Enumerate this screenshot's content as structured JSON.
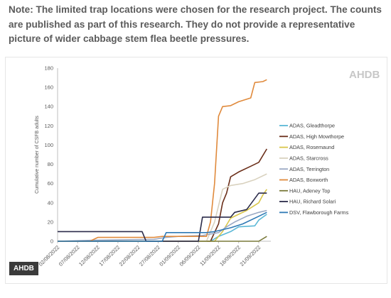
{
  "note": "Note: The limited trap locations were chosen for the research project. The counts are published as part of this research. They do not provide a representative picture of wider cabbage stem flea beetle pressures.",
  "brand_logo": "AHDB",
  "source_badge": "AHDB",
  "chart_data": {
    "type": "line",
    "ylabel": "Cumulative number of CSFB adults",
    "xlabel": "",
    "ylim": [
      0,
      180
    ],
    "yticks": [
      0,
      20,
      40,
      60,
      80,
      100,
      120,
      140,
      160,
      180
    ],
    "x_start": "02/08/2022",
    "x_end": "24/09/2022",
    "xticks": [
      "02/08/2022",
      "07/08/2022",
      "12/08/2022",
      "17/08/2022",
      "22/08/2022",
      "27/08/2022",
      "01/09/2022",
      "06/09/2022",
      "11/09/2022",
      "16/09/2022",
      "21/09/2022"
    ],
    "grid": false,
    "legend_position": "right",
    "series": [
      {
        "name": "ADAS, Gleadthorpe",
        "color": "#5bb8d6",
        "points": [
          [
            "02/08/2022",
            0
          ],
          [
            "09/09/2022",
            0
          ],
          [
            "11/09/2022",
            5
          ],
          [
            "14/09/2022",
            10
          ],
          [
            "16/09/2022",
            15
          ],
          [
            "20/09/2022",
            16
          ],
          [
            "21/09/2022",
            22
          ],
          [
            "23/09/2022",
            28
          ]
        ]
      },
      {
        "name": "ADAS, High Mowthorpe",
        "color": "#6b2f1a",
        "points": [
          [
            "02/08/2022",
            0
          ],
          [
            "09/09/2022",
            0
          ],
          [
            "11/09/2022",
            18
          ],
          [
            "12/09/2022",
            40
          ],
          [
            "13/09/2022",
            50
          ],
          [
            "14/09/2022",
            67
          ],
          [
            "16/09/2022",
            72
          ],
          [
            "19/09/2022",
            78
          ],
          [
            "21/09/2022",
            82
          ],
          [
            "23/09/2022",
            96
          ]
        ]
      },
      {
        "name": "ADAS, Rosemaund",
        "color": "#d9c64a",
        "points": [
          [
            "02/08/2022",
            0
          ],
          [
            "10/09/2022",
            0
          ],
          [
            "12/09/2022",
            10
          ],
          [
            "14/09/2022",
            24
          ],
          [
            "16/09/2022",
            28
          ],
          [
            "18/09/2022",
            32
          ],
          [
            "21/09/2022",
            40
          ],
          [
            "22/09/2022",
            48
          ],
          [
            "23/09/2022",
            54
          ]
        ]
      },
      {
        "name": "ADAS, Starcross",
        "color": "#d9d2bf",
        "points": [
          [
            "02/08/2022",
            0
          ],
          [
            "08/09/2022",
            0
          ],
          [
            "10/09/2022",
            20
          ],
          [
            "12/09/2022",
            54
          ],
          [
            "14/09/2022",
            58
          ],
          [
            "17/09/2022",
            60
          ],
          [
            "20/09/2022",
            64
          ],
          [
            "23/09/2022",
            70
          ]
        ]
      },
      {
        "name": "ADAS, Terrington",
        "color": "#9aa9c4",
        "points": [
          [
            "02/08/2022",
            0
          ],
          [
            "11/08/2022",
            1
          ],
          [
            "26/08/2022",
            2
          ],
          [
            "29/08/2022",
            4
          ],
          [
            "01/09/2022",
            5
          ],
          [
            "07/09/2022",
            6
          ],
          [
            "11/09/2022",
            9
          ],
          [
            "13/09/2022",
            15
          ],
          [
            "15/09/2022",
            20
          ],
          [
            "18/09/2022",
            26
          ],
          [
            "21/09/2022",
            30
          ],
          [
            "23/09/2022",
            32
          ]
        ]
      },
      {
        "name": "ADAS, Boxworth",
        "color": "#e08a3c",
        "points": [
          [
            "02/08/2022",
            0
          ],
          [
            "10/08/2022",
            0
          ],
          [
            "12/08/2022",
            4
          ],
          [
            "26/08/2022",
            4
          ],
          [
            "28/08/2022",
            5
          ],
          [
            "08/09/2022",
            5
          ],
          [
            "09/09/2022",
            20
          ],
          [
            "10/09/2022",
            60
          ],
          [
            "11/09/2022",
            130
          ],
          [
            "12/09/2022",
            140
          ],
          [
            "14/09/2022",
            141
          ],
          [
            "16/09/2022",
            145
          ],
          [
            "19/09/2022",
            149
          ],
          [
            "20/09/2022",
            165
          ],
          [
            "22/09/2022",
            166
          ],
          [
            "23/09/2022",
            168
          ]
        ]
      },
      {
        "name": "HAU, Adeney Top",
        "color": "#7a7a3a",
        "points": [
          [
            "02/08/2022",
            0
          ],
          [
            "21/09/2022",
            0
          ],
          [
            "23/09/2022",
            5
          ]
        ]
      },
      {
        "name": "HAU, Richard Solari",
        "color": "#2b2b4a",
        "points": [
          [
            "02/08/2022",
            10
          ],
          [
            "23/08/2022",
            10
          ],
          [
            "24/08/2022",
            0
          ],
          [
            "06/09/2022",
            0
          ],
          [
            "07/09/2022",
            25
          ],
          [
            "14/09/2022",
            25
          ],
          [
            "15/09/2022",
            30
          ],
          [
            "18/09/2022",
            33
          ],
          [
            "21/09/2022",
            50
          ],
          [
            "23/09/2022",
            50
          ]
        ]
      },
      {
        "name": "DSV, Flawborough Farms",
        "color": "#2e79b5",
        "points": [
          [
            "02/08/2022",
            0
          ],
          [
            "28/08/2022",
            0
          ],
          [
            "29/08/2022",
            9
          ],
          [
            "08/09/2022",
            9
          ],
          [
            "10/09/2022",
            10
          ],
          [
            "14/09/2022",
            14
          ],
          [
            "17/09/2022",
            18
          ],
          [
            "21/09/2022",
            26
          ],
          [
            "23/09/2022",
            30
          ]
        ]
      }
    ]
  }
}
